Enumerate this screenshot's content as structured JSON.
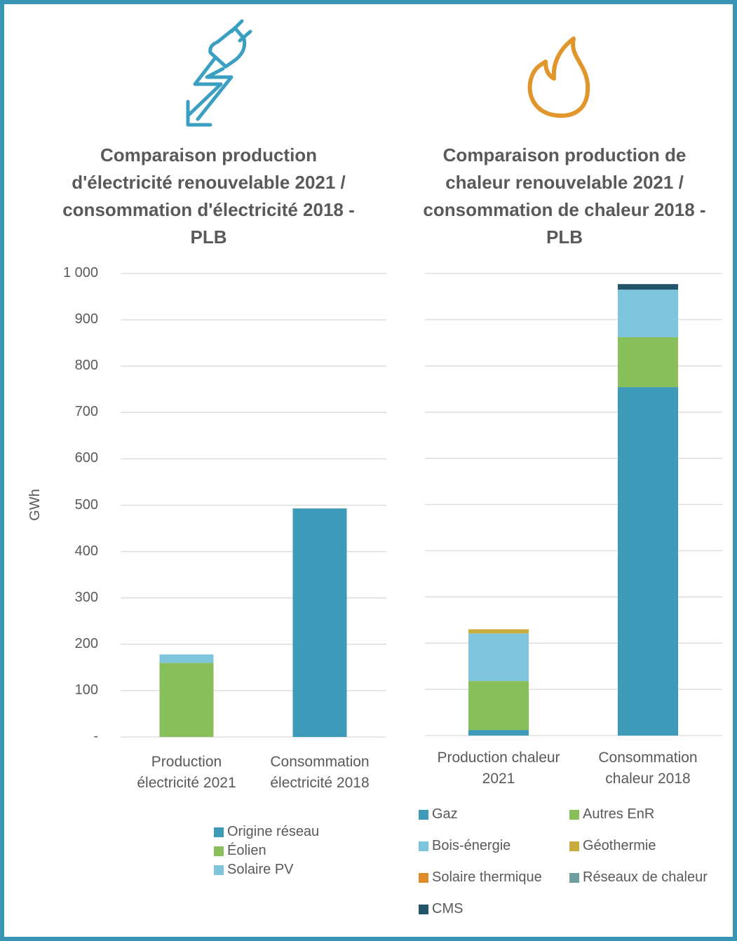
{
  "chart_data": [
    {
      "type": "bar",
      "stacked": true,
      "title": "Comparaison production d'électricité renouvelable 2021 / consommation d'électricité 2018 - PLB",
      "ylabel": "GWh",
      "categories": [
        "Production électricité 2021",
        "Consommation électricité 2018"
      ],
      "series": [
        {
          "name": "Origine réseau",
          "color": "#3d9ab8",
          "values": [
            0,
            493
          ]
        },
        {
          "name": "Éolien",
          "color": "#88bf5a",
          "values": [
            160,
            0
          ]
        },
        {
          "name": "Solaire PV",
          "color": "#7ec4dc",
          "values": [
            18,
            0
          ]
        }
      ],
      "ylim": [
        0,
        1000
      ],
      "yticks": [
        {
          "value": 0,
          "label": "-"
        },
        100,
        200,
        300,
        400,
        500,
        600,
        700,
        800,
        900,
        {
          "value": 1000,
          "label": "1 000"
        }
      ],
      "tick_labels": true,
      "grid": true,
      "legend": "bottom",
      "legend_columns": 1
    },
    {
      "type": "bar",
      "stacked": true,
      "title": "Comparaison production de chaleur renouvelable 2021 / consommation de chaleur 2018 - PLB",
      "categories": [
        "Production chaleur 2021",
        "Consommation chaleur 2018"
      ],
      "series": [
        {
          "name": "Gaz",
          "color": "#3d9ab8",
          "values": [
            12,
            754
          ]
        },
        {
          "name": "Autres EnR",
          "color": "#88bf5a",
          "values": [
            106,
            108
          ]
        },
        {
          "name": "Bois-énergie",
          "color": "#7ec4dc",
          "values": [
            103,
            103
          ]
        },
        {
          "name": "Géothermie",
          "color": "#c9ac3f",
          "values": [
            9,
            0
          ]
        },
        {
          "name": "Solaire thermique",
          "color": "#e08a2a",
          "values": [
            0,
            0
          ]
        },
        {
          "name": "Réseaux de chaleur",
          "color": "#6f9e9e",
          "values": [
            0,
            0
          ]
        },
        {
          "name": "CMS",
          "color": "#22546a",
          "values": [
            0,
            12
          ]
        }
      ],
      "ylim": [
        0,
        1000
      ],
      "yticks": [
        0,
        100,
        200,
        300,
        400,
        500,
        600,
        700,
        800,
        900,
        1000
      ],
      "tick_labels": false,
      "grid": true,
      "legend": "bottom",
      "legend_columns": 2
    }
  ]
}
